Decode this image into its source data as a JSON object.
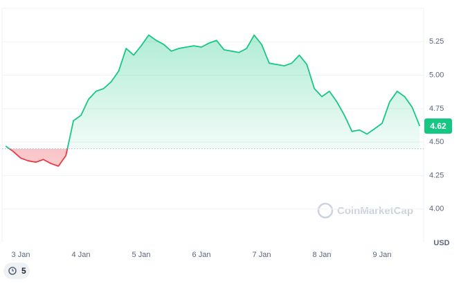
{
  "chart_data": {
    "type": "line",
    "categories": [
      null,
      null,
      "3 Jan",
      null,
      null,
      null,
      null,
      null,
      null,
      null,
      "4 Jan",
      null,
      null,
      null,
      null,
      null,
      null,
      null,
      "5 Jan",
      null,
      null,
      null,
      null,
      null,
      null,
      null,
      "6 Jan",
      null,
      null,
      null,
      null,
      null,
      null,
      null,
      "7 Jan",
      null,
      null,
      null,
      null,
      null,
      null,
      null,
      "8 Jan",
      null,
      null,
      null,
      null,
      null,
      null,
      null,
      "9 Jan",
      null,
      null,
      null,
      null,
      null
    ],
    "series": [
      {
        "name": "USD",
        "color": "#16c784",
        "values": [
          4.47,
          4.43,
          4.38,
          4.36,
          4.35,
          4.37,
          4.34,
          4.32,
          4.4,
          4.66,
          4.7,
          4.82,
          4.88,
          4.9,
          4.95,
          5.03,
          5.2,
          5.15,
          5.22,
          5.3,
          5.26,
          5.23,
          5.18,
          5.2,
          5.21,
          5.22,
          5.21,
          5.24,
          5.26,
          5.19,
          5.18,
          5.17,
          5.2,
          5.3,
          5.23,
          5.09,
          5.08,
          5.07,
          5.09,
          5.15,
          5.08,
          4.9,
          4.84,
          4.88,
          4.8,
          4.7,
          4.58,
          4.59,
          4.56,
          4.6,
          4.64,
          4.8,
          4.88,
          4.84,
          4.76,
          4.62
        ]
      }
    ],
    "baseline": 4.45,
    "below_color": "#ea3943",
    "ylim": [
      3.75,
      5.5
    ],
    "yticks": [
      {
        "value": 4,
        "label": "4.00"
      },
      4.25,
      {
        "value": 4.5,
        "label": "4.50"
      },
      4.75,
      {
        "value": 5,
        "label": "5.00"
      },
      5.25
    ],
    "grid": true,
    "y_unit": "USD",
    "watermark": "CoinMarketCap"
  },
  "badge_count": "5"
}
